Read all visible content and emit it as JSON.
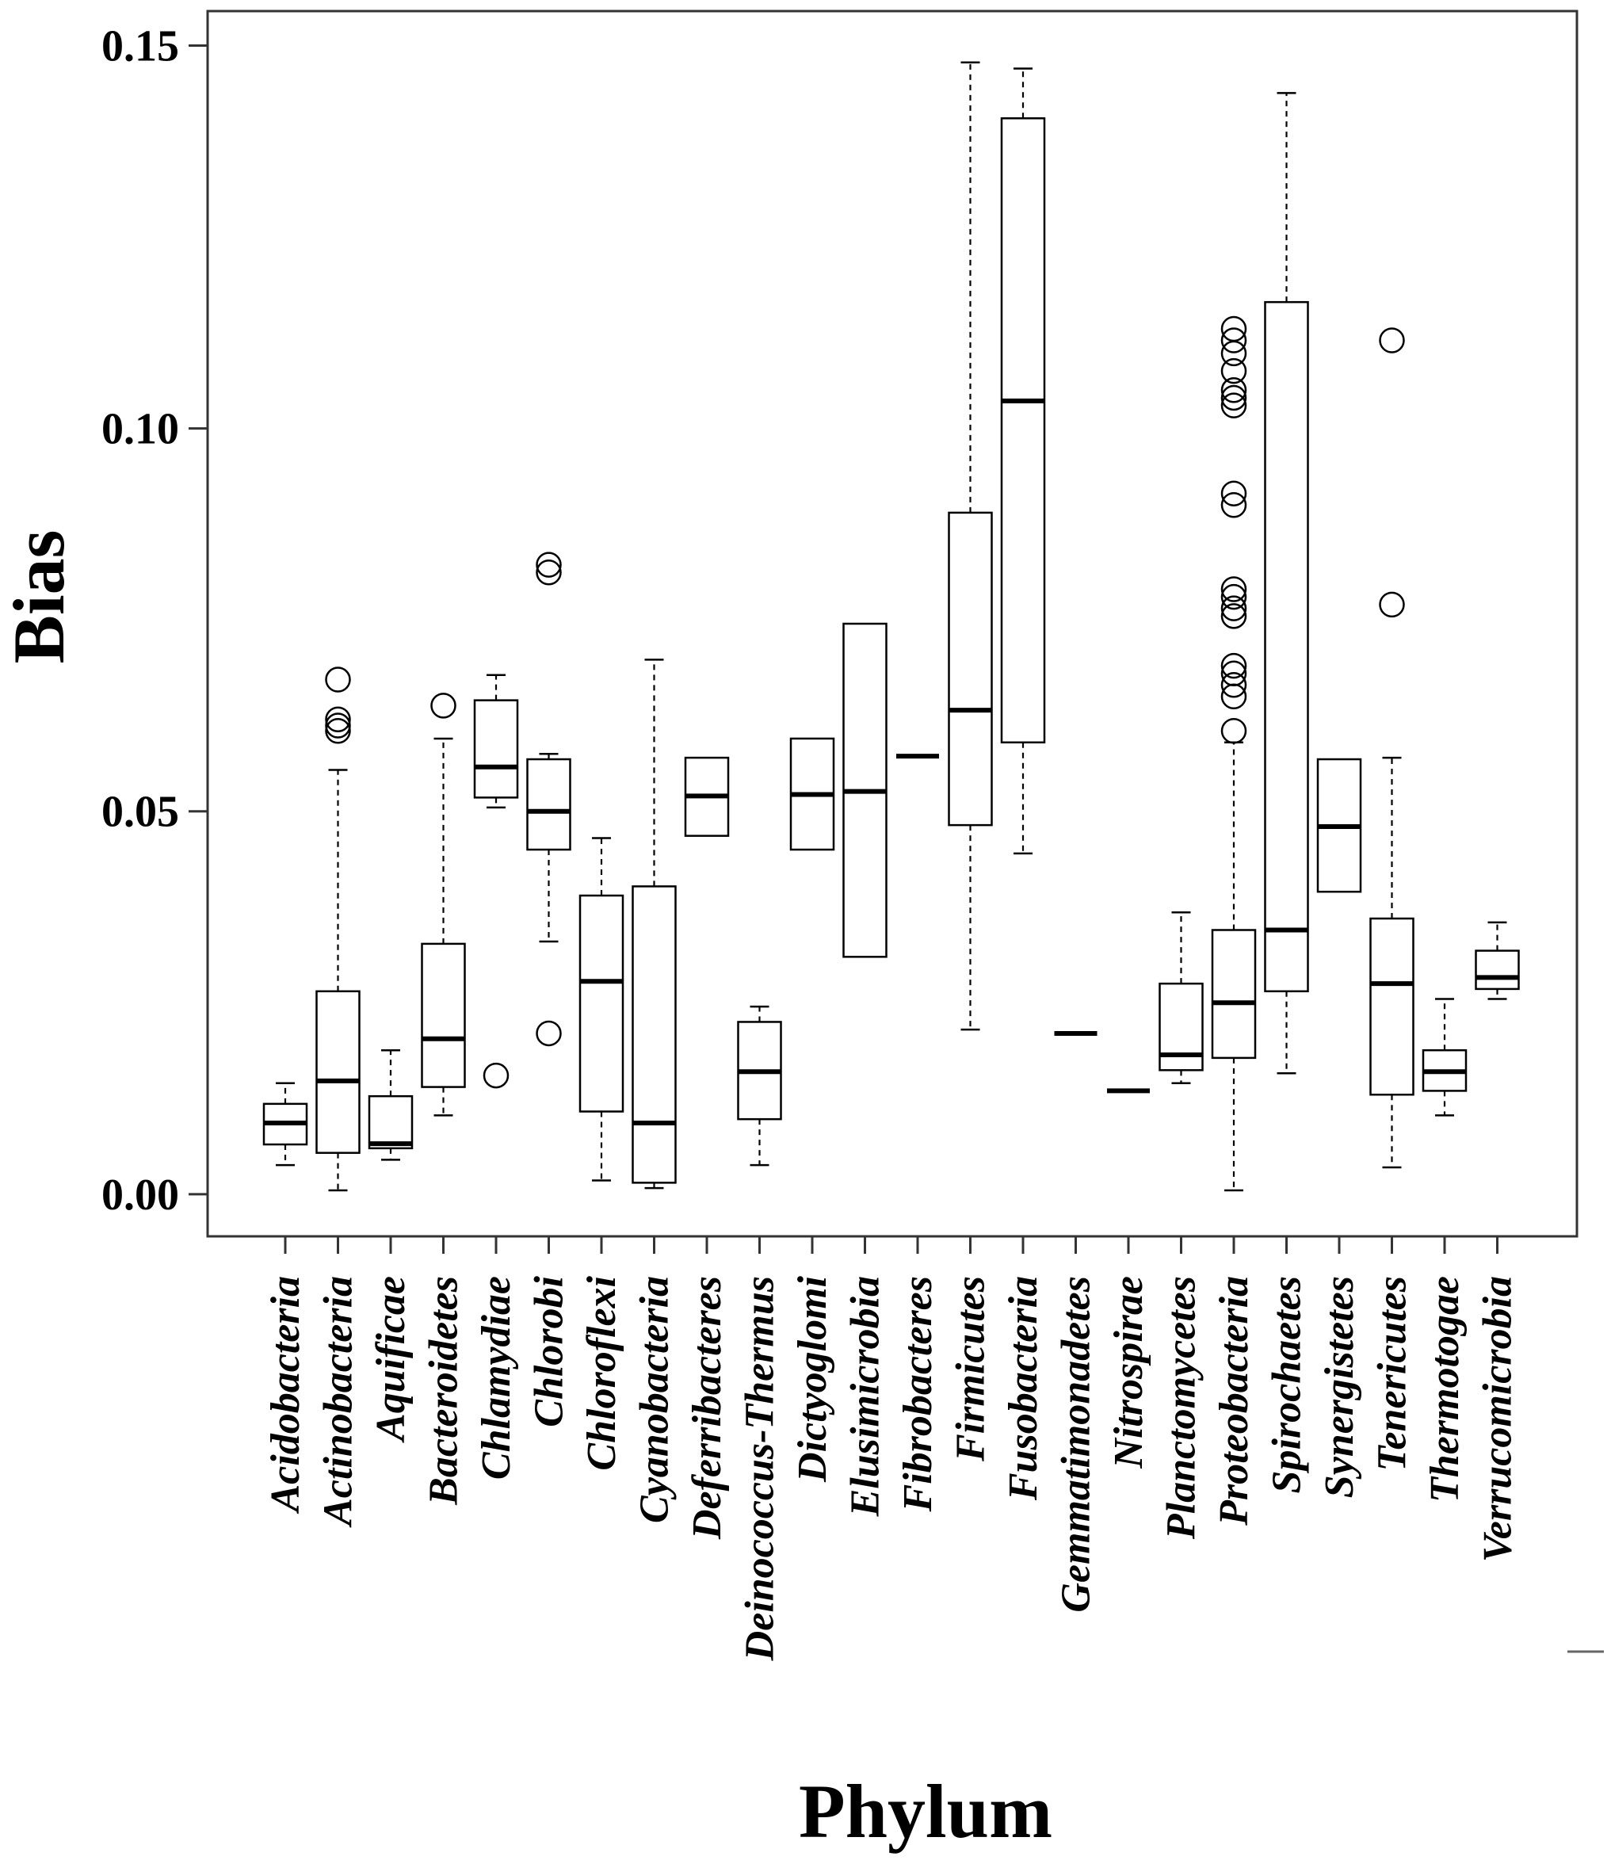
{
  "chart_data": {
    "type": "boxplot",
    "xlabel": "Phylum",
    "ylabel": "Bias",
    "ylim": [
      -0.0055,
      0.1545
    ],
    "yticks": [
      0.0,
      0.05,
      0.1,
      0.15
    ],
    "ytick_labels": [
      "0.00",
      "0.05",
      "0.10",
      "0.15"
    ],
    "categories": [
      {
        "name": "Acidobacteria",
        "whisker_low": 0.0038,
        "q1": 0.0065,
        "median": 0.0093,
        "q3": 0.0118,
        "whisker_high": 0.0145,
        "outliers": []
      },
      {
        "name": "Actinobacteria",
        "whisker_low": 0.0005,
        "q1": 0.0054,
        "median": 0.0148,
        "q3": 0.0265,
        "whisker_high": 0.0554,
        "outliers": [
          0.0605,
          0.0612,
          0.062,
          0.0672
        ]
      },
      {
        "name": "Aquificae",
        "whisker_low": 0.0045,
        "q1": 0.006,
        "median": 0.0066,
        "q3": 0.0128,
        "whisker_high": 0.0188,
        "outliers": []
      },
      {
        "name": "Bacteroidetes",
        "whisker_low": 0.0103,
        "q1": 0.014,
        "median": 0.0203,
        "q3": 0.0327,
        "whisker_high": 0.0595,
        "outliers": [
          0.0638
        ]
      },
      {
        "name": "Chlamydiae",
        "whisker_low": 0.0505,
        "q1": 0.0518,
        "median": 0.0558,
        "q3": 0.0645,
        "whisker_high": 0.0678,
        "outliers": [
          0.0155
        ]
      },
      {
        "name": "Chlorobi",
        "whisker_low": 0.033,
        "q1": 0.045,
        "median": 0.05,
        "q3": 0.0568,
        "whisker_high": 0.0575,
        "outliers": [
          0.021,
          0.0812,
          0.0822
        ]
      },
      {
        "name": "Chloroflexi",
        "whisker_low": 0.0018,
        "q1": 0.0108,
        "median": 0.0278,
        "q3": 0.039,
        "whisker_high": 0.0465,
        "outliers": []
      },
      {
        "name": "Cyanobacteria",
        "whisker_low": 0.0008,
        "q1": 0.0015,
        "median": 0.0093,
        "q3": 0.0402,
        "whisker_high": 0.0698,
        "outliers": []
      },
      {
        "name": "Deferribacteres",
        "whisker_low": 0.0468,
        "q1": 0.0468,
        "median": 0.052,
        "q3": 0.057,
        "whisker_high": 0.057,
        "outliers": []
      },
      {
        "name": "Deinococcus-Thermus",
        "whisker_low": 0.0038,
        "q1": 0.0098,
        "median": 0.016,
        "q3": 0.0225,
        "whisker_high": 0.0245,
        "outliers": []
      },
      {
        "name": "Dictyoglomi",
        "whisker_low": 0.045,
        "q1": 0.045,
        "median": 0.0522,
        "q3": 0.0595,
        "whisker_high": 0.0595,
        "outliers": []
      },
      {
        "name": "Elusimicrobia",
        "whisker_low": 0.031,
        "q1": 0.031,
        "median": 0.0526,
        "q3": 0.0745,
        "whisker_high": 0.0745,
        "outliers": []
      },
      {
        "name": "Fibrobacteres",
        "whisker_low": 0.0572,
        "q1": 0.0572,
        "median": 0.0572,
        "q3": 0.0572,
        "whisker_high": 0.0572,
        "outliers": []
      },
      {
        "name": "Firmicutes",
        "whisker_low": 0.0215,
        "q1": 0.0482,
        "median": 0.0632,
        "q3": 0.089,
        "whisker_high": 0.1478,
        "outliers": []
      },
      {
        "name": "Fusobacteria",
        "whisker_low": 0.0445,
        "q1": 0.059,
        "median": 0.1036,
        "q3": 0.1405,
        "whisker_high": 0.147,
        "outliers": []
      },
      {
        "name": "Gemmatimonadetes",
        "whisker_low": 0.021,
        "q1": 0.021,
        "median": 0.021,
        "q3": 0.021,
        "whisker_high": 0.021,
        "outliers": []
      },
      {
        "name": "Nitrospirae",
        "whisker_low": 0.0135,
        "q1": 0.0135,
        "median": 0.0135,
        "q3": 0.0135,
        "whisker_high": 0.0135,
        "outliers": []
      },
      {
        "name": "Planctomycetes",
        "whisker_low": 0.0145,
        "q1": 0.0162,
        "median": 0.0182,
        "q3": 0.0275,
        "whisker_high": 0.0368,
        "outliers": []
      },
      {
        "name": "Proteobacteria",
        "whisker_low": 0.0005,
        "q1": 0.0178,
        "median": 0.025,
        "q3": 0.0345,
        "whisker_high": 0.059,
        "outliers": [
          0.0605,
          0.065,
          0.0665,
          0.068,
          0.069,
          0.0755,
          0.0765,
          0.078,
          0.079,
          0.09,
          0.0915,
          0.103,
          0.104,
          0.105,
          0.1075,
          0.1098,
          0.1115,
          0.113
        ]
      },
      {
        "name": "Spirochaetes",
        "whisker_low": 0.0158,
        "q1": 0.0265,
        "median": 0.0345,
        "q3": 0.1165,
        "whisker_high": 0.1438,
        "outliers": []
      },
      {
        "name": "Synergistetes",
        "whisker_low": 0.0395,
        "q1": 0.0395,
        "median": 0.048,
        "q3": 0.0568,
        "whisker_high": 0.0568,
        "outliers": []
      },
      {
        "name": "Tenericutes",
        "whisker_low": 0.0035,
        "q1": 0.013,
        "median": 0.0275,
        "q3": 0.036,
        "whisker_high": 0.057,
        "outliers": [
          0.077,
          0.1115
        ]
      },
      {
        "name": "Thermotogae",
        "whisker_low": 0.0103,
        "q1": 0.0135,
        "median": 0.016,
        "q3": 0.0188,
        "whisker_high": 0.0255,
        "outliers": []
      },
      {
        "name": "Verrucomicrobia",
        "whisker_low": 0.0255,
        "q1": 0.0268,
        "median": 0.0283,
        "q3": 0.0318,
        "whisker_high": 0.0355,
        "outliers": []
      }
    ]
  }
}
